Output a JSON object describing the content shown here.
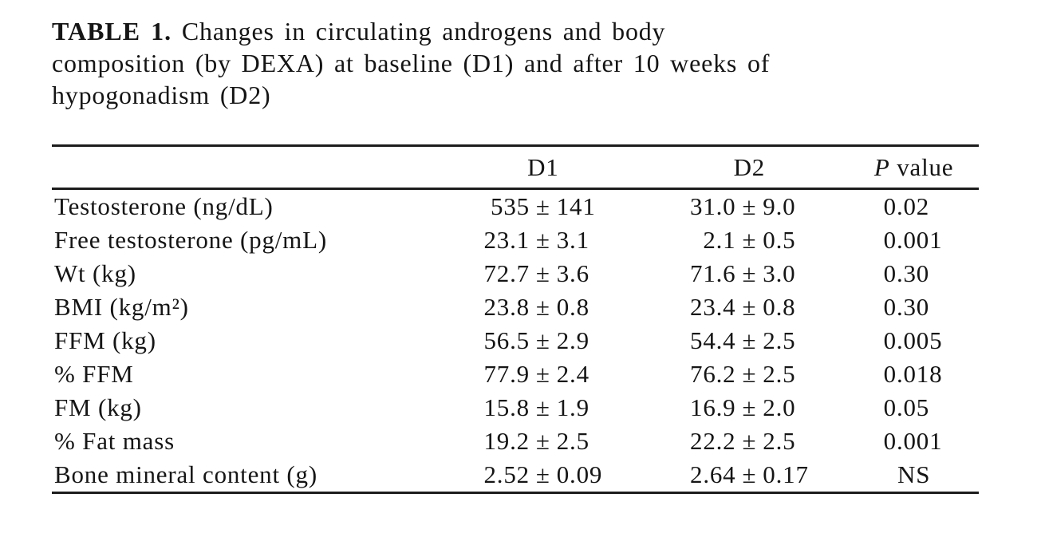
{
  "caption": {
    "bold": "TABLE 1.",
    "line1_rest": " Changes in circulating androgens and body",
    "line2": "composition (by DEXA) at baseline (D1) and after 10 weeks of",
    "line3": "hypogonadism (D2)"
  },
  "table": {
    "header": {
      "label": "",
      "d1": "D1",
      "d2": "D2",
      "p_italic": "P",
      "p_rest": "value"
    },
    "rows": [
      {
        "label": "Testosterone (ng/dL)",
        "d1": "535 ± 141",
        "d2": "31.0 ± 9.0",
        "p": "0.02"
      },
      {
        "label": "Free testosterone (pg/mL)",
        "d1": "23.1 ± 3.1",
        "d2": "2.1 ± 0.5",
        "p": "0.001"
      },
      {
        "label": "Wt (kg)",
        "d1": "72.7 ± 3.6",
        "d2": "71.6 ± 3.0",
        "p": "0.30"
      },
      {
        "label": "BMI (kg/m²)",
        "d1": "23.8 ± 0.8",
        "d2": "23.4 ± 0.8",
        "p": "0.30"
      },
      {
        "label": "FFM (kg)",
        "d1": "56.5 ± 2.9",
        "d2": "54.4 ± 2.5",
        "p": "0.005"
      },
      {
        "label": "% FFM",
        "d1": "77.9 ± 2.4",
        "d2": "76.2 ± 2.5",
        "p": "0.018"
      },
      {
        "label": "FM (kg)",
        "d1": "15.8 ± 1.9",
        "d2": "16.9 ± 2.0",
        "p": "0.05"
      },
      {
        "label": "% Fat mass",
        "d1": "19.2 ± 2.5",
        "d2": "22.2 ± 2.5",
        "p": "0.001"
      },
      {
        "label": "Bone mineral content (g)",
        "d1": "2.52 ± 0.09",
        "d2": "2.64 ± 0.17",
        "p": "NS"
      }
    ]
  }
}
